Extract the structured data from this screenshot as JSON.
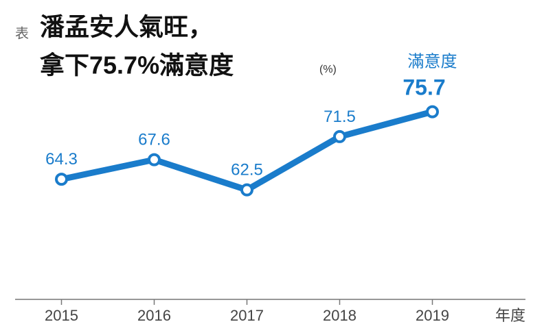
{
  "table_tag": "表",
  "chart_data": {
    "type": "line",
    "title": [
      "潘孟安人氣旺，",
      "拿下75.7%滿意度"
    ],
    "unit": "(%)",
    "x_label": "年度",
    "categories": [
      "2015",
      "2016",
      "2017",
      "2018",
      "2019"
    ],
    "series": [
      {
        "name": "滿意度",
        "color": "#1a7ccb",
        "values": [
          64.3,
          67.6,
          62.5,
          71.5,
          75.7
        ]
      }
    ],
    "ylim": [
      44,
      80
    ]
  }
}
